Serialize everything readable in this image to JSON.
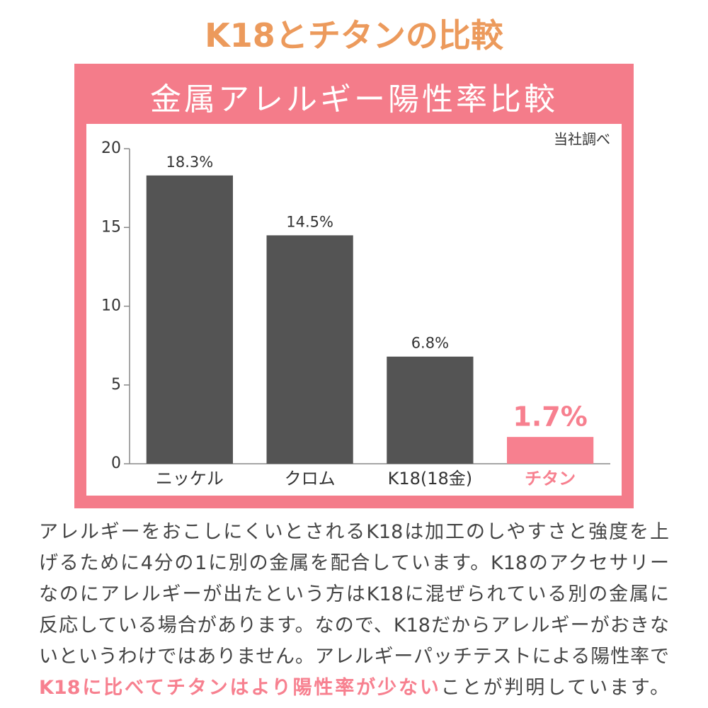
{
  "header": {
    "title": "K18とチタンの比較"
  },
  "chart_data": {
    "type": "bar",
    "title": "金属アレルギー陽性率比較",
    "note": "当社調べ",
    "categories": [
      "ニッケル",
      "クロム",
      "K18(18金)",
      "チタン"
    ],
    "values": [
      18.3,
      14.5,
      6.8,
      1.7
    ],
    "value_labels": [
      "18.3%",
      "14.5%",
      "6.8%",
      "1.7%"
    ],
    "colors": [
      "#545454",
      "#545454",
      "#545454",
      "#f7808f"
    ],
    "emphasis": [
      false,
      false,
      false,
      true
    ],
    "ylim": [
      0,
      20
    ],
    "yticks": [
      0,
      5,
      10,
      15,
      20
    ],
    "grid": false
  },
  "paragraph": {
    "lines": [
      [
        "アレルギーをおこしにくいとされるK18は加工のしやすさと強度を上"
      ],
      [
        "げるために4分の1に別の金属を配合しています。K18のアクセサリー"
      ],
      [
        "なのにアレルギーが出たという方はK18に混ぜられている別の金属に"
      ],
      [
        "反応している場合があります。なので、K18だからアレルギーがおきな"
      ],
      [
        "いというわけではありません。アレルギーパッチテストによる陽性率で"
      ],
      [
        "K18に比べてチタンはより陽性率が少ない",
        "ことが判明しています。"
      ]
    ],
    "highlight": [
      [
        false
      ],
      [
        false
      ],
      [
        false
      ],
      [
        false
      ],
      [
        false
      ],
      [
        true,
        false
      ]
    ]
  }
}
